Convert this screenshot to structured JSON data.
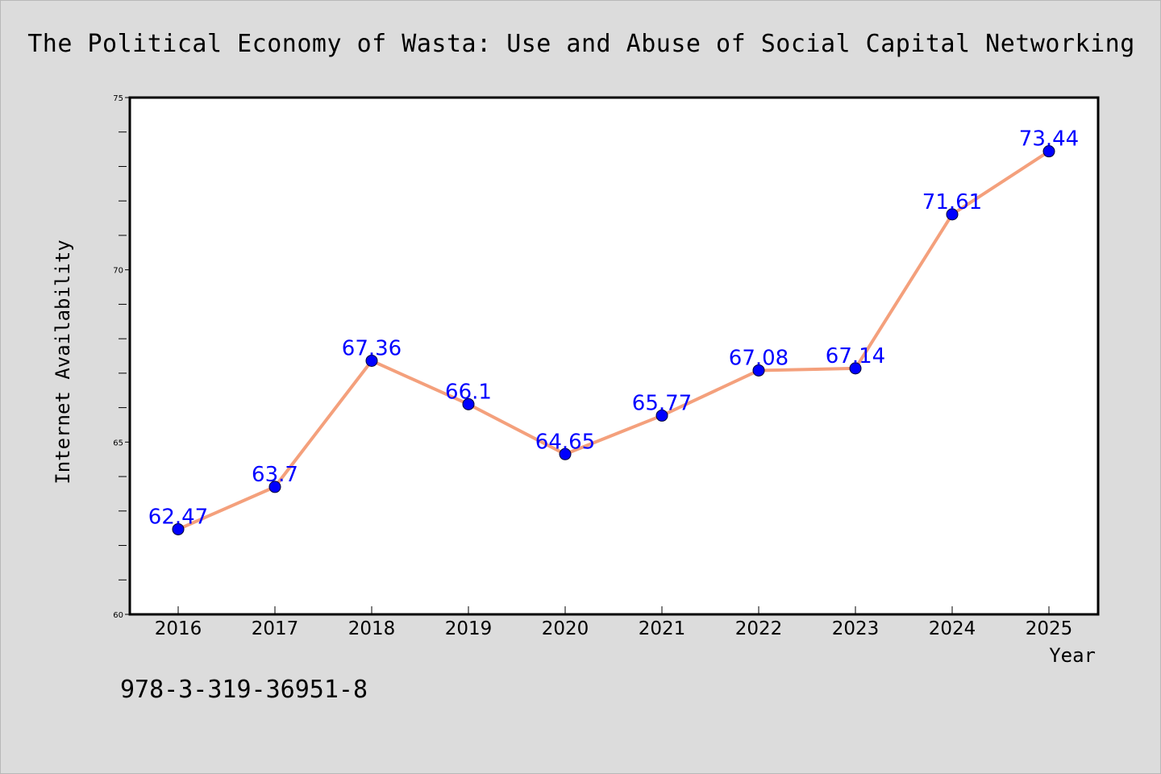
{
  "chart_data": {
    "type": "line",
    "title": "The Political Economy of Wasta: Use and Abuse of Social Capital Networking",
    "xlabel": "Year",
    "ylabel": "Internet Availability",
    "x": [
      "2016",
      "2017",
      "2018",
      "2019",
      "2020",
      "2021",
      "2022",
      "2023",
      "2024",
      "2025"
    ],
    "series": [
      {
        "values": [
          62.47,
          63.7,
          67.36,
          66.1,
          64.65,
          65.77,
          67.08,
          67.14,
          71.61,
          73.44
        ],
        "value_labels": [
          "62.47",
          "63.7",
          "67.36",
          "66.1",
          "64.65",
          "65.77",
          "67.08",
          "67.14",
          "71.61",
          "73.44"
        ],
        "line_color": "#f4a07c",
        "marker_color": "#0000ff",
        "label_color": "#0000ff"
      }
    ],
    "ylim": [
      60,
      75
    ],
    "y_ticks": [
      "60",
      "65",
      "70",
      "75"
    ],
    "grid": false,
    "legend": "none"
  },
  "footnote": "978-3-319-36951-8",
  "colors": {
    "background": "#dcdcdc",
    "plot_area": "#ffffff",
    "axes": "#000000"
  }
}
